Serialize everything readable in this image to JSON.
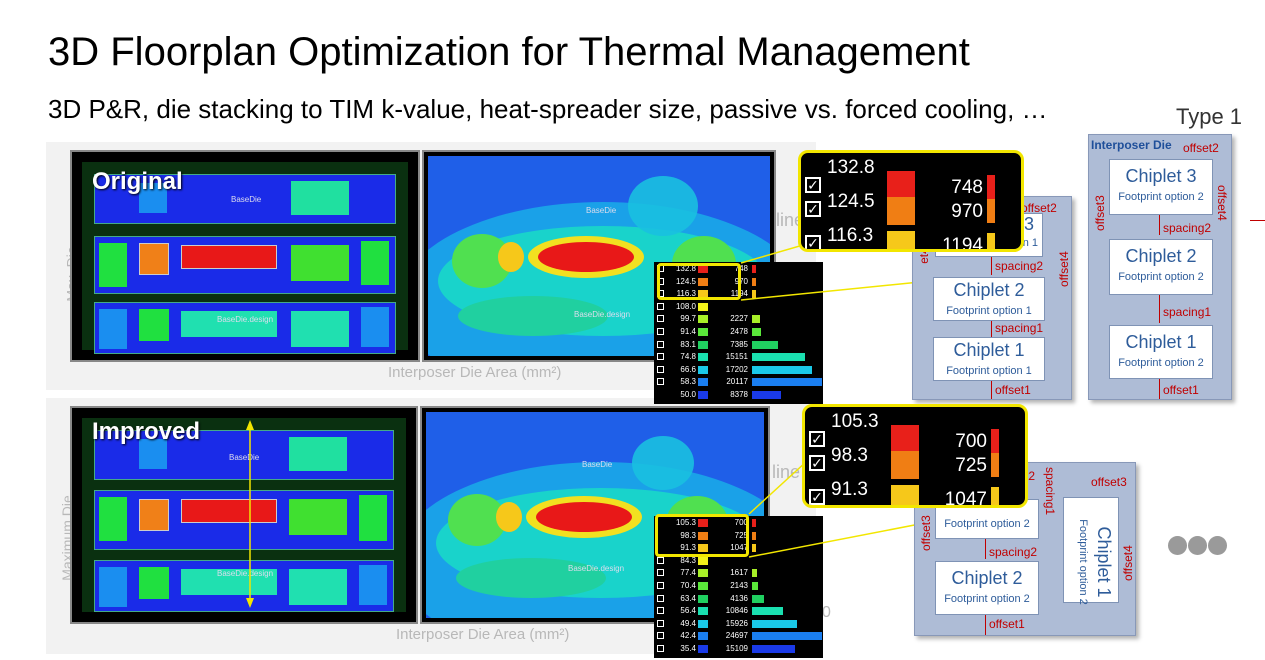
{
  "title": "3D Floorplan Optimization for Thermal Management",
  "subtitle": "3D P&R, die stacking to TIM k-value, heat-spreader size, passive vs. forced cooling, …",
  "type_label": "Type 1",
  "colors": {
    "highlight": "#f2e600",
    "accent_red": "#c00000",
    "chip_text": "#2e5c9a",
    "stack_bg": "#aebcd6"
  },
  "background_labels": {
    "area_axis_top": "Interposer Die Area (mm²)",
    "area_axis_bottom": "Interposer Die Area (mm²)",
    "side_top": "Max. Die",
    "side_bottom": "Maximum Die",
    "line_top": "line",
    "line_bottom": "line",
    "stray_digit": "0"
  },
  "original": {
    "label": "Original",
    "floorplan_texts": {
      "base_die": "BaseDie",
      "base_die_design": "BaseDie.design"
    },
    "thermal_texts": {
      "base_die": "BaseDie",
      "base_die_design": "BaseDie.design"
    },
    "legend": [
      {
        "temp": "132.8",
        "color": "#e8201a",
        "count": "748",
        "checked": true
      },
      {
        "temp": "124.5",
        "color": "#f07e14",
        "count": "970",
        "checked": true
      },
      {
        "temp": "116.3",
        "color": "#f6c81a",
        "count": "1194",
        "checked": true
      },
      {
        "temp": "108.0",
        "color": "#f2f21a",
        "count": "",
        "checked": true
      },
      {
        "temp": "99.7",
        "color": "#a8f028",
        "count": "2227",
        "checked": true
      },
      {
        "temp": "91.4",
        "color": "#5ae83a",
        "count": "2478",
        "checked": true
      },
      {
        "temp": "83.1",
        "color": "#20d060",
        "count": "7385",
        "checked": true
      },
      {
        "temp": "74.8",
        "color": "#1ae0b0",
        "count": "15151",
        "checked": true
      },
      {
        "temp": "66.6",
        "color": "#1ac8e8",
        "count": "17202",
        "checked": true
      },
      {
        "temp": "58.3",
        "color": "#1a7ef0",
        "count": "20117",
        "checked": true
      },
      {
        "temp": "50.0",
        "color": "#1a3ae8",
        "count": "8378",
        "checked": false
      }
    ],
    "zoom": [
      {
        "temp": "132.8",
        "color": "#e8201a",
        "count": "748"
      },
      {
        "temp": "124.5",
        "color": "#f07e14",
        "count": "970"
      },
      {
        "temp": "116.3",
        "color": "#f6c81a",
        "count": "1194"
      }
    ]
  },
  "improved": {
    "label": "Improved",
    "floorplan_texts": {
      "base_die": "BaseDie",
      "base_die_design": "BaseDie.design"
    },
    "thermal_texts": {
      "base_die": "BaseDie",
      "base_die_design": "BaseDie.design"
    },
    "legend": [
      {
        "temp": "105.3",
        "color": "#e8201a",
        "count": "700",
        "checked": false
      },
      {
        "temp": "98.3",
        "color": "#f07e14",
        "count": "725",
        "checked": false
      },
      {
        "temp": "91.3",
        "color": "#f6c81a",
        "count": "1047",
        "checked": false
      },
      {
        "temp": "84.3",
        "color": "#f2f21a",
        "count": "",
        "checked": true
      },
      {
        "temp": "77.4",
        "color": "#a8f028",
        "count": "1617",
        "checked": true
      },
      {
        "temp": "70.4",
        "color": "#5ae83a",
        "count": "2143",
        "checked": true
      },
      {
        "temp": "63.4",
        "color": "#20d060",
        "count": "4136",
        "checked": true
      },
      {
        "temp": "56.4",
        "color": "#1ae0b0",
        "count": "10846",
        "checked": true
      },
      {
        "temp": "49.4",
        "color": "#1ac8e8",
        "count": "15926",
        "checked": true
      },
      {
        "temp": "42.4",
        "color": "#1a7ef0",
        "count": "24697",
        "checked": true
      },
      {
        "temp": "35.4",
        "color": "#1a3ae8",
        "count": "15109",
        "checked": true
      }
    ],
    "zoom": [
      {
        "temp": "105.3",
        "color": "#e8201a",
        "count": "700"
      },
      {
        "temp": "98.3",
        "color": "#f07e14",
        "count": "725"
      },
      {
        "temp": "91.3",
        "color": "#f6c81a",
        "count": "1047"
      }
    ]
  },
  "diagram_a": {
    "partial_chip_fragment": "3",
    "partial_option_fragment": "ption 1",
    "chip2": {
      "name": "Chiplet 2",
      "option": "Footprint option 1"
    },
    "chip1": {
      "name": "Chiplet 1",
      "option": "Footprint option 1"
    },
    "labels": {
      "offset2": "offset2",
      "offset4": "offset4",
      "spacing2": "spacing2",
      "spacing1": "spacing1",
      "offset1": "offset1"
    }
  },
  "diagram_b": {
    "die_label": "Interposer Die",
    "chip3": {
      "name": "Chiplet 3",
      "option": "Footprint option 2"
    },
    "chip2": {
      "name": "Chiplet 2",
      "option": "Footprint option 2"
    },
    "chip1": {
      "name": "Chiplet 1",
      "option": "Footprint option 2"
    },
    "labels": {
      "offset2": "offset2",
      "offset3": "offset3",
      "offset4": "offset4",
      "spacing2": "spacing2",
      "spacing1": "spacing1",
      "offset1": "offset1"
    }
  },
  "diagram_c": {
    "partial_offset2": "t2",
    "spacing1": "spacing1",
    "offset3_right": "offset3",
    "offset3_left": "offset3",
    "offset4": "offset4",
    "top_chip_option": "Footprint option 2",
    "chip1": {
      "name": "Chiplet 1",
      "option": "Footprint option 2"
    },
    "chip2": {
      "name": "Chiplet 2",
      "option": "Footprint option 2"
    },
    "spacing2": "spacing2",
    "offset1": "offset1"
  }
}
